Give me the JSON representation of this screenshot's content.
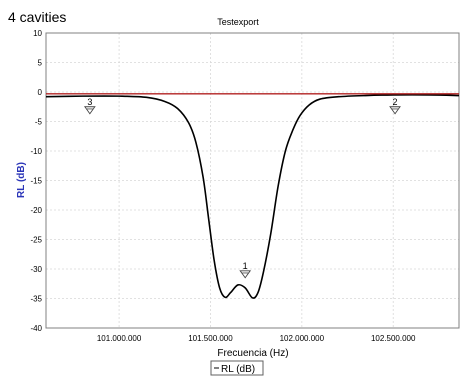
{
  "page_label": "4 cavities",
  "chart_data": {
    "type": "line",
    "title": "Testexport",
    "xlabel": "Frecuencia (Hz)",
    "ylabel": "RL (dB)",
    "xlim": [
      100600000,
      102860000
    ],
    "ylim": [
      -40,
      10
    ],
    "grid": true,
    "legend_position": "bottom-center",
    "x_ticks": [
      {
        "value": 101000000,
        "label": "101.000.000"
      },
      {
        "value": 101500000,
        "label": "101.500.000"
      },
      {
        "value": 102000000,
        "label": "102.000.000"
      },
      {
        "value": 102500000,
        "label": "102.500.000"
      }
    ],
    "y_ticks": [
      {
        "value": 10,
        "label": "10"
      },
      {
        "value": 5,
        "label": "5"
      },
      {
        "value": 0,
        "label": "0"
      },
      {
        "value": -5,
        "label": "-5"
      },
      {
        "value": -10,
        "label": "-10"
      },
      {
        "value": -15,
        "label": "-15"
      },
      {
        "value": -20,
        "label": "-20"
      },
      {
        "value": -25,
        "label": "-25"
      },
      {
        "value": -30,
        "label": "-30"
      },
      {
        "value": -35,
        "label": "-35"
      },
      {
        "value": -40,
        "label": "-40"
      }
    ],
    "series": [
      {
        "name": "RL (dB)",
        "color": "#000000",
        "x": [
          100600000,
          100800000,
          101000000,
          101150000,
          101250000,
          101320000,
          101380000,
          101420000,
          101460000,
          101490000,
          101520000,
          101550000,
          101580000,
          101610000,
          101650000,
          101690000,
          101730000,
          101760000,
          101790000,
          101830000,
          101870000,
          101910000,
          101950000,
          101990000,
          102040000,
          102100000,
          102200000,
          102350000,
          102500000,
          102700000,
          102860000
        ],
        "y": [
          -0.8,
          -0.7,
          -0.7,
          -0.9,
          -1.6,
          -2.8,
          -5.2,
          -8.5,
          -14.5,
          -21.5,
          -28.5,
          -33.2,
          -34.8,
          -34.0,
          -32.7,
          -33.2,
          -34.9,
          -34.0,
          -30.5,
          -24.0,
          -16.0,
          -10.0,
          -6.5,
          -4.0,
          -2.2,
          -1.2,
          -0.8,
          -0.6,
          -0.5,
          -0.5,
          -0.6
        ]
      },
      {
        "color": "#b22222",
        "x": [
          100600000,
          102860000
        ],
        "y": [
          -0.3,
          -0.3
        ]
      }
    ],
    "markers": [
      {
        "label": "1",
        "x": 101690000,
        "y": -30.3
      },
      {
        "label": "2",
        "x": 102510000,
        "y": -2.5
      },
      {
        "label": "3",
        "x": 100840000,
        "y": -2.5
      }
    ]
  }
}
